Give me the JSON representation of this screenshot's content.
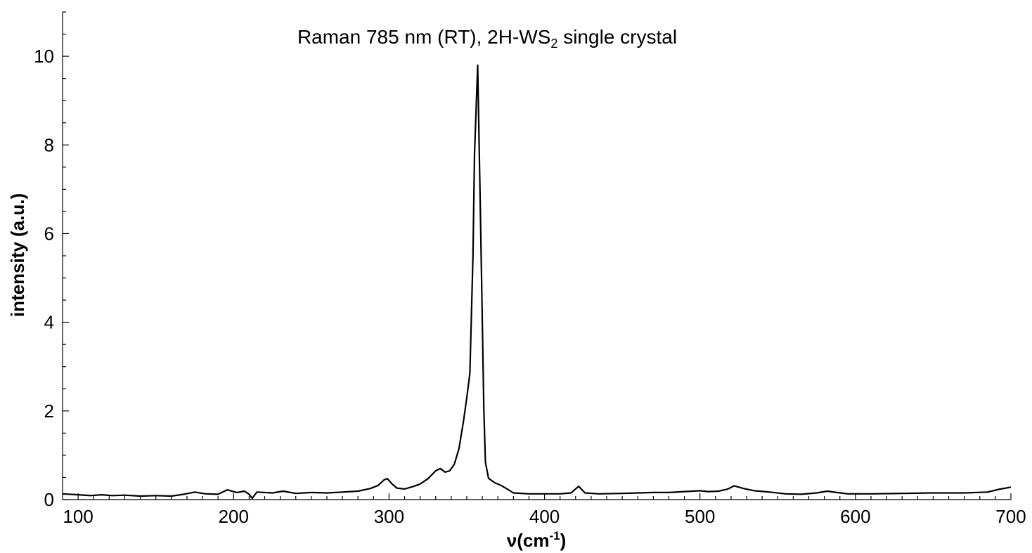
{
  "chart_data": {
    "type": "line",
    "title_main": "Raman 785 nm (RT), 2H-WS",
    "title_sub": "2",
    "title_tail": " single crystal",
    "xlabel_main": "ν(cm",
    "xlabel_sup": "-1",
    "xlabel_tail": ")",
    "ylabel": "intensity (a.u.)",
    "xlim": [
      90,
      700
    ],
    "ylim": [
      0,
      11
    ],
    "xticks": [
      100,
      200,
      300,
      400,
      500,
      600,
      700
    ],
    "yticks": [
      0,
      2,
      4,
      6,
      8,
      10
    ],
    "grid": false,
    "series": [
      {
        "color": "#000000",
        "points": [
          [
            90,
            0.13
          ],
          [
            100,
            0.11
          ],
          [
            108,
            0.09
          ],
          [
            115,
            0.11
          ],
          [
            122,
            0.09
          ],
          [
            130,
            0.1
          ],
          [
            140,
            0.08
          ],
          [
            150,
            0.09
          ],
          [
            160,
            0.08
          ],
          [
            168,
            0.12
          ],
          [
            175,
            0.17
          ],
          [
            182,
            0.13
          ],
          [
            190,
            0.12
          ],
          [
            196,
            0.22
          ],
          [
            202,
            0.16
          ],
          [
            207,
            0.19
          ],
          [
            210,
            0.12
          ],
          [
            212,
            0.03
          ],
          [
            215,
            0.17
          ],
          [
            225,
            0.15
          ],
          [
            232,
            0.19
          ],
          [
            240,
            0.14
          ],
          [
            250,
            0.16
          ],
          [
            260,
            0.15
          ],
          [
            270,
            0.17
          ],
          [
            280,
            0.19
          ],
          [
            288,
            0.25
          ],
          [
            293,
            0.32
          ],
          [
            297,
            0.45
          ],
          [
            299,
            0.47
          ],
          [
            302,
            0.35
          ],
          [
            305,
            0.26
          ],
          [
            310,
            0.24
          ],
          [
            315,
            0.29
          ],
          [
            320,
            0.35
          ],
          [
            325,
            0.47
          ],
          [
            330,
            0.65
          ],
          [
            333,
            0.7
          ],
          [
            336,
            0.62
          ],
          [
            339,
            0.65
          ],
          [
            342,
            0.8
          ],
          [
            345,
            1.15
          ],
          [
            348,
            1.8
          ],
          [
            350,
            2.3
          ],
          [
            352,
            2.85
          ],
          [
            354,
            5.5
          ],
          [
            355,
            7.8
          ],
          [
            357,
            9.8
          ],
          [
            359,
            6.0
          ],
          [
            361,
            2.0
          ],
          [
            362,
            0.85
          ],
          [
            364,
            0.48
          ],
          [
            368,
            0.38
          ],
          [
            372,
            0.32
          ],
          [
            376,
            0.24
          ],
          [
            380,
            0.15
          ],
          [
            390,
            0.13
          ],
          [
            400,
            0.13
          ],
          [
            410,
            0.13
          ],
          [
            417,
            0.15
          ],
          [
            422,
            0.3
          ],
          [
            426,
            0.15
          ],
          [
            435,
            0.13
          ],
          [
            450,
            0.14
          ],
          [
            460,
            0.15
          ],
          [
            470,
            0.16
          ],
          [
            480,
            0.16
          ],
          [
            490,
            0.18
          ],
          [
            500,
            0.2
          ],
          [
            505,
            0.18
          ],
          [
            512,
            0.19
          ],
          [
            518,
            0.24
          ],
          [
            522,
            0.31
          ],
          [
            528,
            0.25
          ],
          [
            535,
            0.2
          ],
          [
            545,
            0.17
          ],
          [
            555,
            0.13
          ],
          [
            565,
            0.12
          ],
          [
            575,
            0.15
          ],
          [
            582,
            0.19
          ],
          [
            588,
            0.16
          ],
          [
            595,
            0.13
          ],
          [
            610,
            0.13
          ],
          [
            630,
            0.14
          ],
          [
            650,
            0.15
          ],
          [
            670,
            0.15
          ],
          [
            685,
            0.17
          ],
          [
            692,
            0.23
          ],
          [
            700,
            0.28
          ]
        ]
      }
    ]
  }
}
